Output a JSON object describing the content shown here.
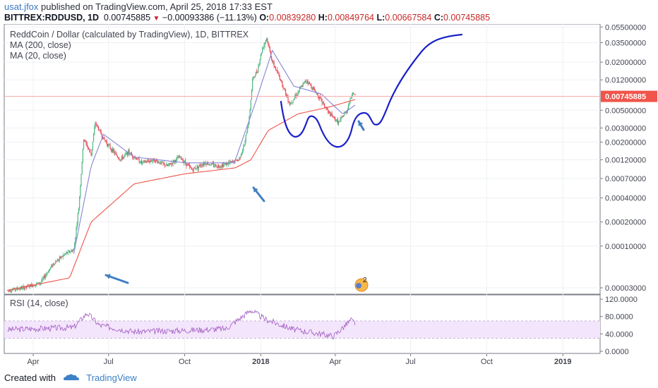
{
  "header": {
    "username": "usat.jfox",
    "published_text": " published on TradingView.com, April 25, 2018 17:33 EST",
    "symbol": "BITTREX:RDDUSD, 1D",
    "last": "0.00745885",
    "change": "−0.00093386 (−11.13%)",
    "o_label": "O:",
    "o_value": "0.00839280",
    "h_label": "H:",
    "h_value": "0.00849764",
    "l_label": "L:",
    "l_value": "0.00667584",
    "c_label": "C:",
    "c_value": "0.00745885"
  },
  "legend": {
    "title": "ReddCoin / Dollar (calculated by TradingView), 1D, BITTREX",
    "ma200": "MA (200, close)",
    "ma20": "MA (20, close)",
    "rsi": "RSI (14, close)"
  },
  "footer": {
    "created": "Created with",
    "brand": "TradingView"
  },
  "colors": {
    "up": "#53b987",
    "down": "#eb4d5c",
    "ma200": "#f0544b",
    "ma20": "#8585d6",
    "rsi": "#a25bc4",
    "annotation": "#1a20c8",
    "arrow": "#3f7fc0",
    "price_tag": "#f0544b"
  },
  "chart_data": [
    {
      "type": "candlestick",
      "title": "ReddCoin / Dollar (calculated by TradingView), 1D, BITTREX",
      "scale": "log",
      "ylim": [
        2.5e-05,
        0.06
      ],
      "y_ticks": [
        "0.05500000",
        "0.03500000",
        "0.02000000",
        "0.01200000",
        "0.00500000",
        "0.00300000",
        "0.00200000",
        "0.00120000",
        "0.00070000",
        "0.00040000",
        "0.00020000",
        "0.00010000",
        "0.00003000"
      ],
      "x_ticks": [
        "Apr",
        "Jul",
        "Oct",
        "2018",
        "Apr",
        "Jul",
        "Oct",
        "2019"
      ],
      "last_price_label": "0.00745885",
      "price_path": [
        [
          "2017-03-01",
          2.8e-05
        ],
        [
          "2017-03-20",
          3e-05
        ],
        [
          "2017-04-10",
          3.5e-05
        ],
        [
          "2017-04-25",
          6e-05
        ],
        [
          "2017-05-10",
          8e-05
        ],
        [
          "2017-05-20",
          9e-05
        ],
        [
          "2017-05-26",
          0.0003
        ],
        [
          "2017-06-01",
          0.0022
        ],
        [
          "2017-06-10",
          0.0014
        ],
        [
          "2017-06-15",
          0.0035
        ],
        [
          "2017-06-25",
          0.0022
        ],
        [
          "2017-07-05",
          0.0016
        ],
        [
          "2017-07-15",
          0.0012
        ],
        [
          "2017-07-25",
          0.0015
        ],
        [
          "2017-08-10",
          0.0011
        ],
        [
          "2017-08-25",
          0.0012
        ],
        [
          "2017-09-10",
          0.001
        ],
        [
          "2017-09-25",
          0.0013
        ],
        [
          "2017-10-10",
          0.0009
        ],
        [
          "2017-10-25",
          0.0011
        ],
        [
          "2017-11-10",
          0.001
        ],
        [
          "2017-11-25",
          0.0011
        ],
        [
          "2017-12-05",
          0.0012
        ],
        [
          "2017-12-12",
          0.0018
        ],
        [
          "2017-12-18",
          0.004
        ],
        [
          "2017-12-22",
          0.012
        ],
        [
          "2017-12-28",
          0.016
        ],
        [
          "2018-01-03",
          0.03
        ],
        [
          "2018-01-08",
          0.04
        ],
        [
          "2018-01-15",
          0.02
        ],
        [
          "2018-01-25",
          0.012
        ],
        [
          "2018-02-05",
          0.006
        ],
        [
          "2018-02-15",
          0.0085
        ],
        [
          "2018-02-25",
          0.012
        ],
        [
          "2018-03-10",
          0.008
        ],
        [
          "2018-03-25",
          0.0045
        ],
        [
          "2018-04-05",
          0.0035
        ],
        [
          "2018-04-15",
          0.005
        ],
        [
          "2018-04-22",
          0.0085
        ],
        [
          "2018-04-25",
          0.00745885
        ]
      ]
    },
    {
      "type": "line",
      "series": [
        {
          "name": "MA (200, close)",
          "x": [
            "2017-03-01",
            "2017-05-15",
            "2017-06-10",
            "2017-08-01",
            "2017-10-01",
            "2017-12-01",
            "2017-12-20",
            "2018-01-10",
            "2018-02-15",
            "2018-03-25",
            "2018-04-25"
          ],
          "values": [
            2.8e-05,
            4e-05,
            0.0002,
            0.0006,
            0.0008,
            0.00095,
            0.0012,
            0.0028,
            0.0045,
            0.0055,
            0.0068
          ]
        },
        {
          "name": "MA (20, close)",
          "x": [
            "2017-05-20",
            "2017-06-10",
            "2017-06-25",
            "2017-08-01",
            "2017-10-01",
            "2017-11-30",
            "2017-12-25",
            "2018-01-15",
            "2018-02-10",
            "2018-03-15",
            "2018-04-10",
            "2018-04-25"
          ],
          "values": [
            8e-05,
            0.001,
            0.0025,
            0.0013,
            0.0011,
            0.0011,
            0.006,
            0.028,
            0.01,
            0.008,
            0.0045,
            0.0058
          ]
        }
      ]
    },
    {
      "type": "line",
      "title": "RSI (14, close)",
      "y_ticks": [
        "120.0000",
        "80.0000",
        "40.0000",
        "0.0000"
      ],
      "ylim": [
        -5,
        130
      ],
      "band": [
        30,
        70
      ],
      "series": [
        {
          "name": "RSI (14, close)",
          "x": [
            "2017-03-01",
            "2017-05-20",
            "2017-06-05",
            "2017-06-20",
            "2017-08-01",
            "2017-10-01",
            "2017-11-20",
            "2017-12-20",
            "2018-01-05",
            "2018-02-10",
            "2018-03-30",
            "2018-04-20",
            "2018-04-25"
          ],
          "values": [
            50,
            55,
            88,
            60,
            45,
            48,
            52,
            95,
            75,
            50,
            35,
            72,
            65
          ]
        }
      ]
    }
  ]
}
